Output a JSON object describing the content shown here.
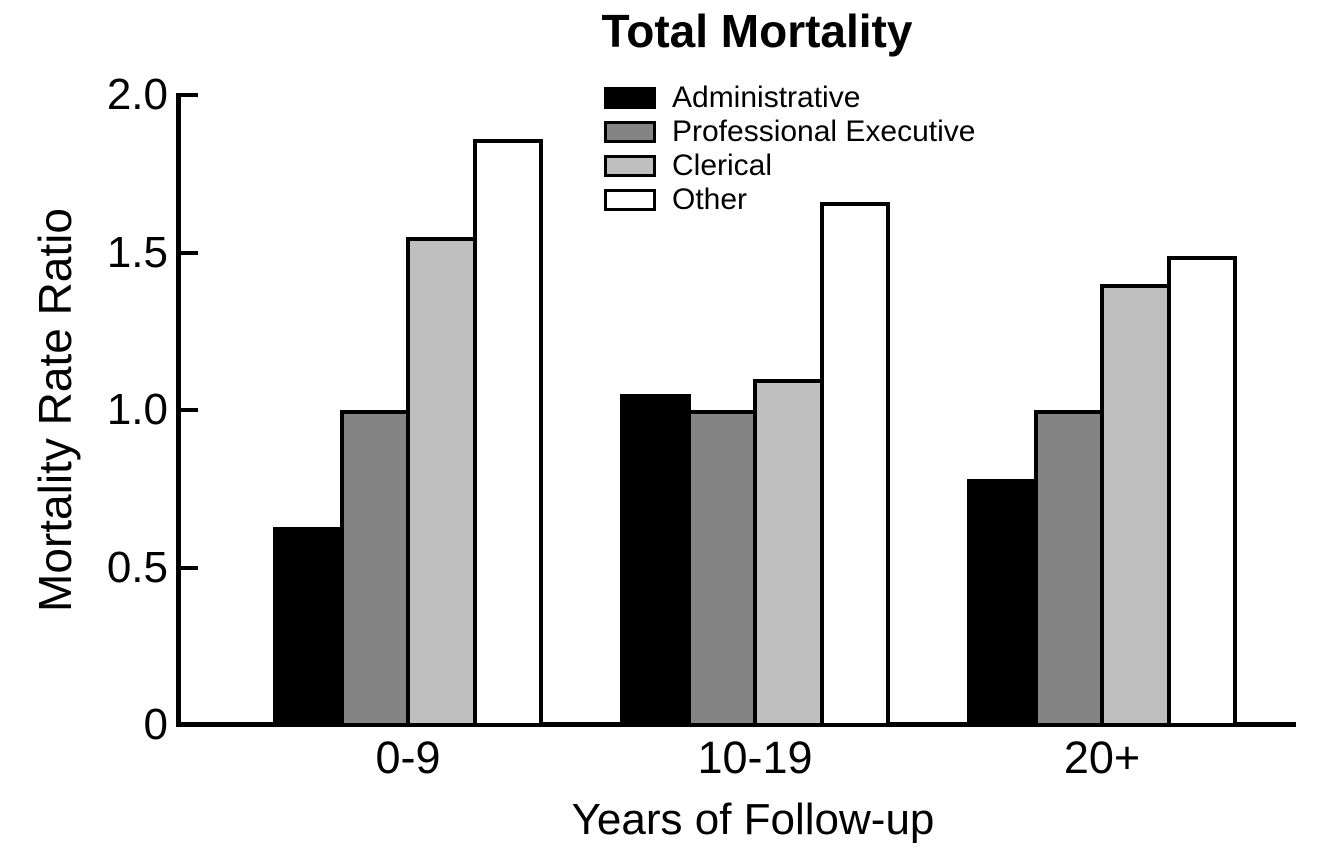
{
  "title": "Total Mortality",
  "y_axis": {
    "label": "Mortality Rate Ratio",
    "ticks": [
      {
        "text": "2.0",
        "value": 2.0
      },
      {
        "text": "1.5",
        "value": 1.5
      },
      {
        "text": "1.0",
        "value": 1.0
      },
      {
        "text": "0.5",
        "value": 0.5
      },
      {
        "text": "0",
        "value": 0.0
      }
    ],
    "range": [
      0,
      2.0
    ]
  },
  "x_axis": {
    "label": "Years of Follow-up"
  },
  "chart_data": {
    "type": "bar",
    "title": "Total Mortality",
    "xlabel": "Years of Follow-up",
    "ylabel": "Mortality Rate Ratio",
    "ylim": [
      0,
      2.0
    ],
    "grid": false,
    "legend_position": "upper center",
    "categories": [
      "0-9",
      "10-19",
      "20+"
    ],
    "series": [
      {
        "name": "Administrative",
        "color": "#000000",
        "values": [
          0.63,
          1.05,
          0.78
        ]
      },
      {
        "name": "Professional Executive",
        "color": "#848484",
        "values": [
          1.0,
          1.0,
          1.0
        ]
      },
      {
        "name": "Clerical",
        "color": "#bfbfbf",
        "values": [
          1.55,
          1.1,
          1.4
        ]
      },
      {
        "name": "Other",
        "color": "#ffffff",
        "values": [
          1.86,
          1.66,
          1.49
        ]
      }
    ]
  },
  "colors": {
    "axis": "#000000",
    "background": "#ffffff"
  }
}
